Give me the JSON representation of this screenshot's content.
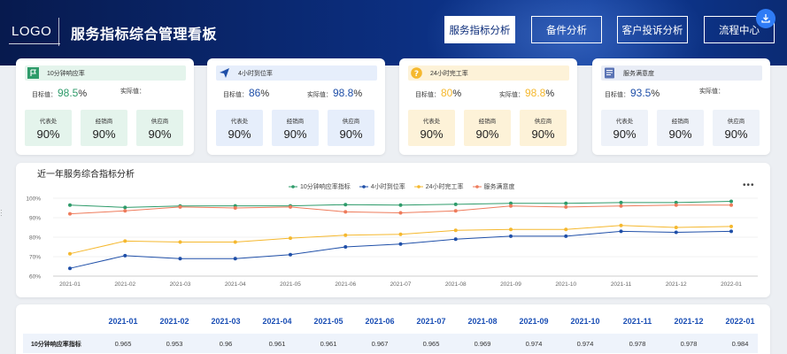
{
  "header": {
    "logo": "LOGO",
    "title": "服务指标综合管理看板",
    "nav": [
      "服务指标分析",
      "备件分析",
      "客户投诉分析",
      "流程中心"
    ]
  },
  "cards": [
    {
      "title": "10分钟响应率",
      "icon": "flag-icon",
      "target_label": "目标值：",
      "target_value": "98.5",
      "unit": "%",
      "actual_label": "实际值：",
      "actual_value": "",
      "subs": [
        {
          "label": "代表处",
          "value": "90%"
        },
        {
          "label": "经销商",
          "value": "90%"
        },
        {
          "label": "供应商",
          "value": "90%"
        }
      ]
    },
    {
      "title": "4小时到位率",
      "icon": "paper-plane-icon",
      "target_label": "目标值：",
      "target_value": "86",
      "unit": "%",
      "actual_label": "实际值：",
      "actual_value": "98.8",
      "subs": [
        {
          "label": "代表处",
          "value": "90%"
        },
        {
          "label": "经销商",
          "value": "90%"
        },
        {
          "label": "供应商",
          "value": "90%"
        }
      ]
    },
    {
      "title": "24小时完工率",
      "icon": "question-icon",
      "target_label": "目标值：",
      "target_value": "80",
      "unit": "%",
      "actual_label": "实际值：",
      "actual_value": "98.8",
      "subs": [
        {
          "label": "代表处",
          "value": "90%"
        },
        {
          "label": "经销商",
          "value": "90%"
        },
        {
          "label": "供应商",
          "value": "90%"
        }
      ]
    },
    {
      "title": "服务满意度",
      "icon": "document-icon",
      "target_label": "目标值：",
      "target_value": "93.5",
      "unit": "%",
      "actual_label": "实际值：",
      "actual_value": "",
      "subs": [
        {
          "label": "代表处",
          "value": "90%"
        },
        {
          "label": "经销商",
          "value": "90%"
        },
        {
          "label": "供应商",
          "value": "90%"
        }
      ]
    }
  ],
  "colors": {
    "green": "#2e9b6a",
    "blue": "#1f4fa8",
    "yellow": "#f5b82e",
    "orange": "#ee7b5b",
    "head_green": "#e4f4ec",
    "head_blue": "#e6eefb",
    "head_yellow": "#fdf2d8",
    "head_gray": "#e9edf6"
  },
  "chart_data": {
    "type": "line",
    "title": "近一年服务综合指标分析",
    "categories": [
      "2021-01",
      "2021-02",
      "2021-03",
      "2021-04",
      "2021-05",
      "2021-06",
      "2021-07",
      "2021-08",
      "2021-09",
      "2021-10",
      "2021-11",
      "2021-12",
      "2022-01"
    ],
    "yticks": [
      "100%",
      "90%",
      "80%",
      "70%",
      "60%"
    ],
    "ylim": [
      0.6,
      1.0
    ],
    "grid": true,
    "legend_position": "top",
    "series": [
      {
        "name": "10分钟响应率指标",
        "color": "#2e9b6a",
        "values": [
          0.965,
          0.953,
          0.96,
          0.961,
          0.961,
          0.967,
          0.965,
          0.969,
          0.974,
          0.974,
          0.978,
          0.978,
          0.984
        ]
      },
      {
        "name": "4小时到位率",
        "color": "#1f4fa8",
        "values": [
          0.64,
          0.705,
          0.69,
          0.69,
          0.71,
          0.75,
          0.765,
          0.79,
          0.805,
          0.805,
          0.83,
          0.825,
          0.83
        ]
      },
      {
        "name": "24小时完工率",
        "color": "#f5b82e",
        "values": [
          0.715,
          0.78,
          0.775,
          0.775,
          0.795,
          0.81,
          0.815,
          0.835,
          0.84,
          0.84,
          0.86,
          0.85,
          0.855
        ]
      },
      {
        "name": "服务满意度",
        "color": "#ee7b5b",
        "values": [
          0.92,
          0.935,
          0.955,
          0.95,
          0.955,
          0.93,
          0.925,
          0.935,
          0.96,
          0.955,
          0.96,
          0.965,
          0.965
        ]
      }
    ]
  },
  "table": {
    "headers": [
      "2021-01",
      "2021-02",
      "2021-03",
      "2021-04",
      "2021-05",
      "2021-06",
      "2021-07",
      "2021-08",
      "2021-09",
      "2021-10",
      "2021-11",
      "2021-12",
      "2022-01"
    ],
    "rows": [
      {
        "label": "10分钟响应率指标",
        "values": [
          "0.965",
          "0.953",
          "0.96",
          "0.961",
          "0.961",
          "0.967",
          "0.965",
          "0.969",
          "0.974",
          "0.974",
          "0.978",
          "0.978",
          "0.984"
        ]
      }
    ]
  }
}
